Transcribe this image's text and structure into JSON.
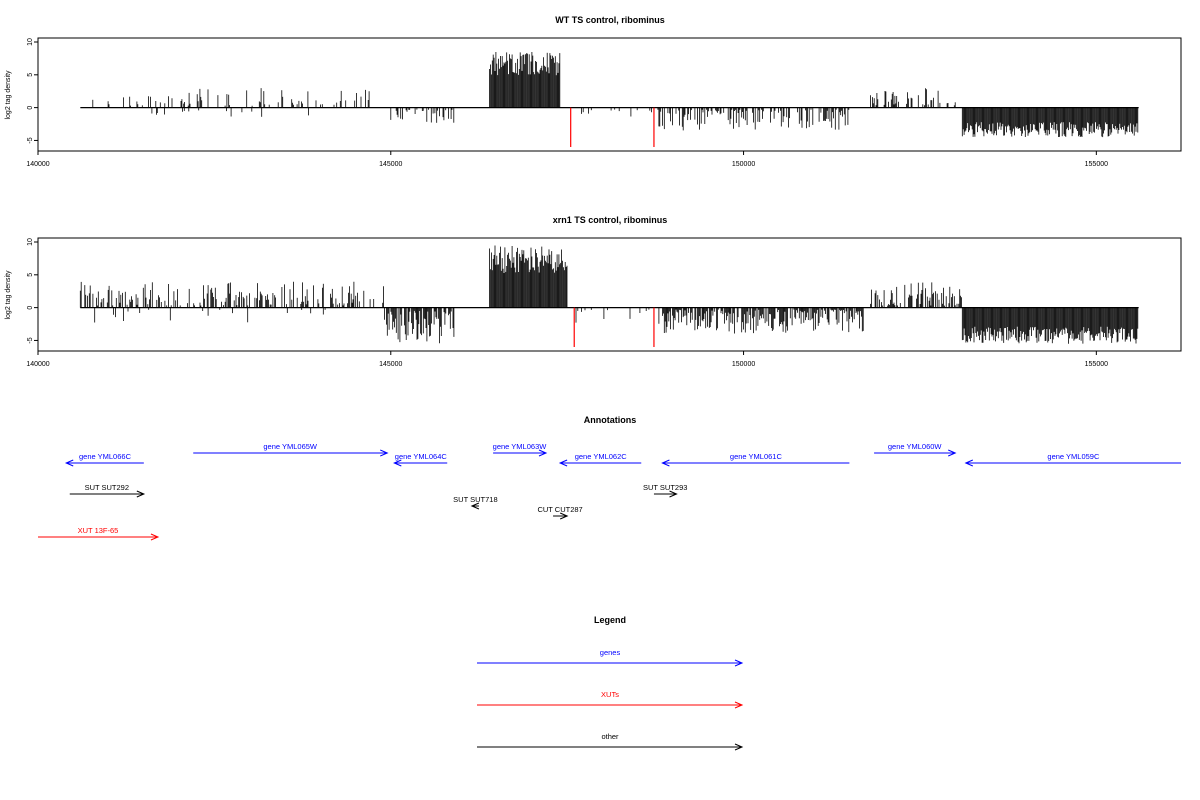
{
  "chart_data": [
    {
      "type": "bar",
      "title": "WT TS control, ribominus",
      "xlabel": "",
      "ylabel": "log2 tag density",
      "xlim": [
        140000,
        156200
      ],
      "ylim": [
        -6,
        10
      ],
      "xticks": [
        140000,
        145000,
        150000,
        155000
      ],
      "yticks": [
        -5,
        0,
        5,
        10
      ],
      "grid": false,
      "baseline_span": [
        140600,
        155600
      ],
      "segments": [
        {
          "x0": 140700,
          "x1": 144800,
          "sign": 1,
          "density": 0.22,
          "lo": 0.3,
          "hi": 3.0
        },
        {
          "x0": 141500,
          "x1": 144400,
          "sign": -1,
          "density": 0.04,
          "lo": 0.3,
          "hi": 1.5
        },
        {
          "x0": 145000,
          "x1": 145900,
          "sign": -1,
          "density": 0.45,
          "lo": 0.3,
          "hi": 2.5
        },
        {
          "x0": 146400,
          "x1": 147400,
          "sign": 1,
          "density": 1.0,
          "lo": 3.0,
          "hi": 8.5
        },
        {
          "x0": 147600,
          "x1": 148800,
          "sign": -1,
          "density": 0.12,
          "lo": 0.3,
          "hi": 1.8
        },
        {
          "x0": 148800,
          "x1": 151500,
          "sign": -1,
          "density": 0.55,
          "lo": 0.3,
          "hi": 3.5
        },
        {
          "x0": 151800,
          "x1": 153000,
          "sign": 1,
          "density": 0.4,
          "lo": 0.3,
          "hi": 3.0
        },
        {
          "x0": 153100,
          "x1": 155600,
          "sign": -1,
          "density": 1.0,
          "lo": 1.0,
          "hi": 4.5
        }
      ],
      "highlight_marks": [
        {
          "x": 147550,
          "y": -6,
          "color": "#ff0000"
        },
        {
          "x": 148730,
          "y": -6,
          "color": "#ff0000"
        }
      ]
    },
    {
      "type": "bar",
      "title": "xrn1 TS control, ribominus",
      "xlabel": "",
      "ylabel": "log2 tag density",
      "xlim": [
        140000,
        156200
      ],
      "ylim": [
        -6,
        10
      ],
      "xticks": [
        140000,
        145000,
        150000,
        155000
      ],
      "yticks": [
        -5,
        0,
        5,
        10
      ],
      "grid": false,
      "baseline_span": [
        140600,
        155600
      ],
      "segments": [
        {
          "x0": 140600,
          "x1": 144900,
          "sign": 1,
          "density": 0.45,
          "lo": 0.3,
          "hi": 4.0
        },
        {
          "x0": 140600,
          "x1": 144400,
          "sign": -1,
          "density": 0.05,
          "lo": 0.3,
          "hi": 2.5
        },
        {
          "x0": 144900,
          "x1": 145900,
          "sign": -1,
          "density": 0.8,
          "lo": 0.5,
          "hi": 5.5
        },
        {
          "x0": 146400,
          "x1": 147500,
          "sign": 1,
          "density": 1.0,
          "lo": 3.0,
          "hi": 9.5
        },
        {
          "x0": 147600,
          "x1": 148800,
          "sign": -1,
          "density": 0.15,
          "lo": 0.3,
          "hi": 2.5
        },
        {
          "x0": 148800,
          "x1": 151700,
          "sign": -1,
          "density": 0.8,
          "lo": 0.3,
          "hi": 4.0
        },
        {
          "x0": 151800,
          "x1": 153100,
          "sign": 1,
          "density": 0.6,
          "lo": 0.3,
          "hi": 4.0
        },
        {
          "x0": 153100,
          "x1": 155600,
          "sign": -1,
          "density": 1.0,
          "lo": 1.5,
          "hi": 5.5
        }
      ],
      "highlight_marks": [
        {
          "x": 147600,
          "y": -6,
          "color": "#ff0000"
        },
        {
          "x": 148730,
          "y": -6,
          "color": "#ff0000"
        }
      ]
    }
  ],
  "annotations": {
    "title": "Annotations",
    "items": [
      {
        "label": "gene YML066C",
        "x0": 141500,
        "x1": 140400,
        "track": 0,
        "color": "#0000ff"
      },
      {
        "label": "gene YML065W",
        "x0": 142200,
        "x1": 144950,
        "track": 1,
        "color": "#0000ff"
      },
      {
        "label": "gene YML064C",
        "x0": 145800,
        "x1": 145050,
        "track": 0,
        "color": "#0000ff"
      },
      {
        "label": "gene YML063W",
        "x0": 146450,
        "x1": 147200,
        "track": 1,
        "color": "#0000ff"
      },
      {
        "label": "gene YML062C",
        "x0": 148550,
        "x1": 147400,
        "track": 0,
        "color": "#0000ff"
      },
      {
        "label": "gene YML061C",
        "x0": 151500,
        "x1": 148850,
        "track": 0,
        "color": "#0000ff"
      },
      {
        "label": "gene YML060W",
        "x0": 151850,
        "x1": 153000,
        "track": 1,
        "color": "#0000ff"
      },
      {
        "label": "gene YML059C",
        "x0": 156200,
        "x1": 153150,
        "track": 0,
        "color": "#0000ff"
      },
      {
        "label": "SUT SUT292",
        "x0": 140450,
        "x1": 141500,
        "track": 2,
        "color": "#000000"
      },
      {
        "label": "SUT SUT718",
        "x0": 146250,
        "x1": 146150,
        "track": 3,
        "color": "#000000"
      },
      {
        "label": "SUT SUT293",
        "x0": 148730,
        "x1": 149050,
        "track": 2,
        "color": "#000000"
      },
      {
        "label": "CUT CUT287",
        "x0": 147300,
        "x1": 147500,
        "track": 4,
        "color": "#000000"
      },
      {
        "label": "XUT 13F-65",
        "x0": 140000,
        "x1": 141700,
        "track": 5,
        "color": "#ff0000"
      }
    ]
  },
  "legend": {
    "title": "Legend",
    "items": [
      {
        "label": "genes",
        "color": "#0000ff"
      },
      {
        "label": "XUTs",
        "color": "#ff0000"
      },
      {
        "label": "other",
        "color": "#000000"
      }
    ]
  }
}
